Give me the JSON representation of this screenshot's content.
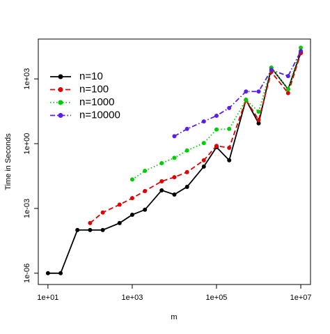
{
  "chart_data": {
    "type": "line",
    "x_label": "m",
    "y_label": "Time in Seconds",
    "log_x": true,
    "log_y": true,
    "grid": false,
    "legend_position": "top-left",
    "xlim": [
      5.9,
      17000000
    ],
    "ylim": [
      3e-07,
      70000
    ],
    "xticks": [
      {
        "value": 10,
        "label": "1e+01"
      },
      {
        "value": 1000,
        "label": "1e+03"
      },
      {
        "value": 100000,
        "label": "1e+05"
      },
      {
        "value": 10000000,
        "label": "1e+07"
      }
    ],
    "yticks": [
      {
        "value": 1e-06,
        "label": "1e-06"
      },
      {
        "value": 0.001,
        "label": "1e-03"
      },
      {
        "value": 1,
        "label": "1e+00"
      },
      {
        "value": 1000,
        "label": "1e+03"
      }
    ],
    "x": [
      10,
      20,
      50,
      100,
      200,
      500,
      1000,
      2000,
      5000,
      10000,
      20000,
      50000,
      100000,
      200000,
      500000,
      1000000,
      2000000,
      5000000,
      10000000
    ],
    "series": [
      {
        "name": "n=10",
        "color": "#000000",
        "dash": "none",
        "values": [
          1e-06,
          1e-06,
          0.0001,
          0.0001,
          0.0001,
          0.00021,
          0.00051,
          0.00087,
          0.0069,
          0.0044,
          0.01,
          0.087,
          0.69,
          0.17,
          107,
          8.7,
          3300,
          330,
          17000
        ]
      },
      {
        "name": "n=100",
        "color": "#e00000",
        "dash": "7,4",
        "values": [
          null,
          null,
          null,
          0.00021,
          0.00065,
          0.0015,
          0.003,
          0.0064,
          0.018,
          0.028,
          0.048,
          0.17,
          0.79,
          0.64,
          107,
          12.6,
          2100,
          220,
          15500
        ]
      },
      {
        "name": "n=1000",
        "color": "#00cd00",
        "dash": "1.5,3",
        "values": [
          null,
          null,
          null,
          null,
          null,
          null,
          0.022,
          0.055,
          0.125,
          0.22,
          0.48,
          1.07,
          4.5,
          4.8,
          107,
          30,
          3300,
          330,
          28000
        ]
      },
      {
        "name": "n=10000",
        "color": "#5a1ee6",
        "dash": "7,3,1.5,3",
        "values": [
          null,
          null,
          null,
          null,
          null,
          null,
          null,
          null,
          null,
          2.2,
          4.8,
          10.7,
          19.6,
          45,
          260,
          260,
          2600,
          1350,
          19500
        ]
      }
    ]
  }
}
